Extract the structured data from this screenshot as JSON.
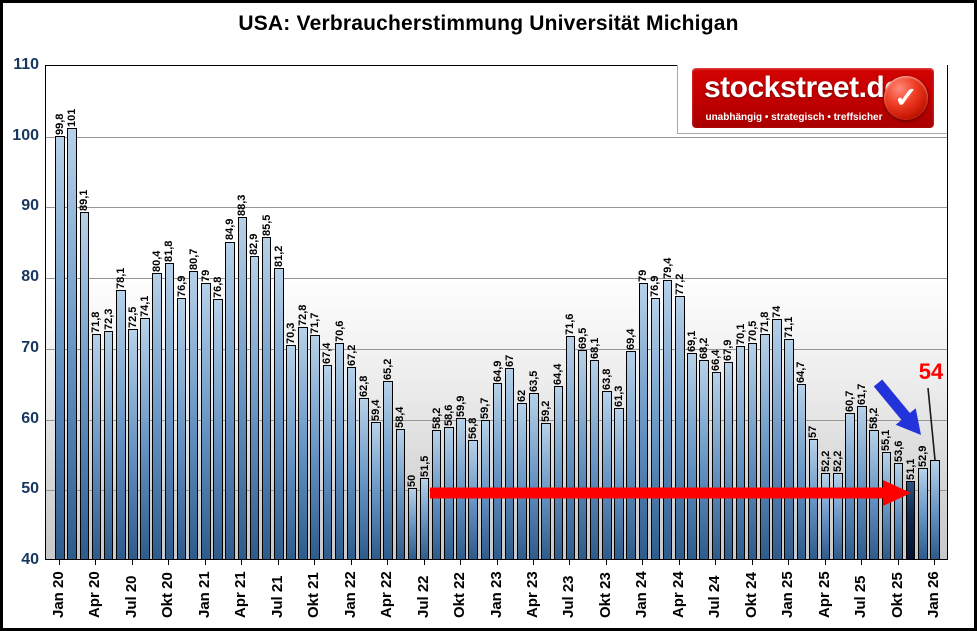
{
  "title": "USA: Verbraucherstimmung Universität Michigan",
  "logo": {
    "name": "stockstreet.de",
    "tagline": "unabhängig • strategisch • treffsicher",
    "check_icon": "✓",
    "bg_color": "#C00000"
  },
  "colors": {
    "bar_top": "#B7D1E8",
    "bar_mid": "#6291C1",
    "bar_bottom": "#2D5C8C",
    "bar_dark_top": "#2A5380",
    "bar_dark_mid": "#11294E",
    "bar_dark_bottom": "#02102E",
    "support_arrow": "#FE0000",
    "decline_arrow": "#2233D9",
    "annotation": "#FF0000",
    "y_label": "#17375E",
    "gridline": "#969696"
  },
  "y_axis": {
    "min": 40,
    "max": 110,
    "step": 10,
    "labels": [
      "110",
      "100",
      "90",
      "80",
      "70",
      "60",
      "50",
      "40"
    ]
  },
  "x_axis": {
    "tick_labels": [
      "Jan 20",
      "Apr 20",
      "Jul 20",
      "Okt 20",
      "Jan 21",
      "Apr 21",
      "Jul 21",
      "Okt 21",
      "Jan 22",
      "Apr 22",
      "Jul 22",
      "Okt 22",
      "Jan 23",
      "Apr 23",
      "Jul 23",
      "Okt 23",
      "Jan 24",
      "Apr 24",
      "Jul 24",
      "Okt 24",
      "Jan 25",
      "Apr 25",
      "Jul 25",
      "Okt 25",
      "Jan 26"
    ]
  },
  "chart_data": {
    "type": "bar",
    "title": "USA: Verbraucherstimmung Universität Michigan",
    "ylim": [
      40,
      110
    ],
    "grid": true,
    "decimal_separator": ",",
    "categories": [
      "Jan 20",
      "Feb 20",
      "Mär 20",
      "Apr 20",
      "Mai 20",
      "Jun 20",
      "Jul 20",
      "Aug 20",
      "Sep 20",
      "Okt 20",
      "Nov 20",
      "Dez 20",
      "Jan 21",
      "Feb 21",
      "Mär 21",
      "Apr 21",
      "Mai 21",
      "Jun 21",
      "Jul 21",
      "Aug 21",
      "Sep 21",
      "Okt 21",
      "Nov 21",
      "Dez 21",
      "Jan 22",
      "Feb 22",
      "Mär 22",
      "Apr 22",
      "Mai 22",
      "Jun 22",
      "Jul 22",
      "Aug 22",
      "Sep 22",
      "Okt 22",
      "Nov 22",
      "Dez 22",
      "Jan 23",
      "Feb 23",
      "Mär 23",
      "Apr 23",
      "Mai 23",
      "Jun 23",
      "Jul 23",
      "Aug 23",
      "Sep 23",
      "Okt 23",
      "Nov 23",
      "Dez 23",
      "Jan 24",
      "Feb 24",
      "Mär 24",
      "Apr 24",
      "Mai 24",
      "Jun 24",
      "Jul 24",
      "Aug 24",
      "Sep 24",
      "Okt 24",
      "Nov 24",
      "Dez 24",
      "Jan 25",
      "Feb 25",
      "Mär 25",
      "Apr 25",
      "Mai 25",
      "Jun 25",
      "Jul 25",
      "Aug 25",
      "Sep 25",
      "Okt 25",
      "Nov 25",
      "Dez 25",
      "Jan 26"
    ],
    "values": [
      99.8,
      101,
      89.1,
      71.8,
      72.3,
      78.1,
      72.5,
      74.1,
      80.4,
      81.8,
      76.9,
      80.7,
      79,
      76.8,
      84.9,
      88.3,
      82.9,
      85.5,
      81.2,
      70.3,
      72.8,
      71.7,
      67.4,
      70.6,
      67.2,
      62.8,
      59.4,
      65.2,
      58.4,
      50,
      51.5,
      58.2,
      58.6,
      59.9,
      56.8,
      59.7,
      64.9,
      67,
      62,
      63.5,
      59.2,
      64.4,
      71.6,
      69.5,
      68.1,
      63.8,
      61.3,
      69.4,
      79,
      76.9,
      79.4,
      77.2,
      69.1,
      68.2,
      66.4,
      67.9,
      70.1,
      70.5,
      71.8,
      74,
      71.1,
      64.7,
      57,
      52.2,
      52.2,
      60.7,
      61.7,
      58.2,
      55.1,
      53.6,
      51.1,
      52.9,
      54
    ],
    "highlighted_index": 70,
    "annotation": {
      "label": "54",
      "target": "Jan 26"
    }
  }
}
